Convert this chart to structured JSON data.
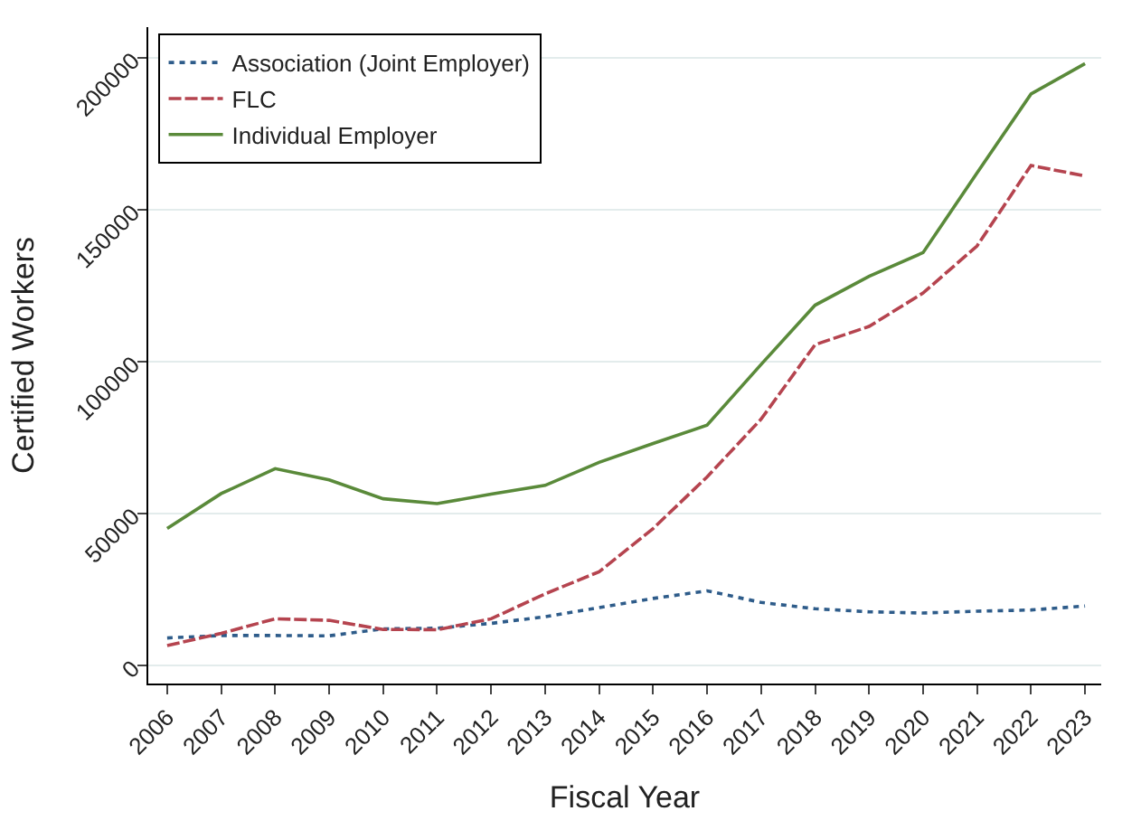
{
  "chart_data": {
    "type": "line",
    "xlabel": "Fiscal Year",
    "ylabel": "Certified Workers",
    "x": [
      2006,
      2007,
      2008,
      2009,
      2010,
      2011,
      2012,
      2013,
      2014,
      2015,
      2016,
      2017,
      2018,
      2019,
      2020,
      2021,
      2022,
      2023
    ],
    "series": [
      {
        "name": "Association (Joint Employer)",
        "color": "#2e5c8a",
        "line_style": "dotted",
        "values": [
          9000,
          9800,
          9800,
          9700,
          12000,
          12200,
          13800,
          16000,
          19000,
          22000,
          24500,
          20700,
          18600,
          17600,
          17200,
          17800,
          18200,
          19500
        ]
      },
      {
        "name": "FLC",
        "color": "#b5444f",
        "line_style": "dashed",
        "values": [
          6500,
          10500,
          15300,
          14800,
          11800,
          11700,
          15300,
          23500,
          30800,
          45000,
          62000,
          81000,
          105500,
          111500,
          122500,
          138000,
          164500,
          161000
        ]
      },
      {
        "name": "Individual Employer",
        "color": "#5a8a3a",
        "line_style": "solid",
        "values": [
          45000,
          56500,
          64700,
          61000,
          54800,
          53200,
          56300,
          59200,
          66800,
          73000,
          79000,
          99000,
          118500,
          128000,
          135800,
          162000,
          188000,
          198000
        ]
      }
    ],
    "xlim": [
      2005.65,
      2023.3
    ],
    "xticks": [
      2006,
      2007,
      2008,
      2009,
      2010,
      2011,
      2012,
      2013,
      2014,
      2015,
      2016,
      2017,
      2018,
      2019,
      2020,
      2021,
      2022,
      2023
    ],
    "ylim": [
      -6000,
      210000
    ],
    "yticks": [
      0,
      50000,
      100000,
      150000,
      200000
    ],
    "grid": "y",
    "legend": "top left",
    "marker": "none"
  }
}
